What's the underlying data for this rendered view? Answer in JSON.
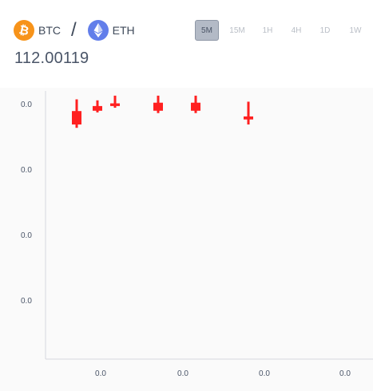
{
  "header": {
    "base_token": {
      "symbol": "BTC",
      "icon": "bitcoin-icon",
      "color": "#f7931a"
    },
    "separator": "/",
    "quote_token": {
      "symbol": "ETH",
      "icon": "ethereum-icon",
      "color": "#627eea"
    },
    "intervals": [
      {
        "label": "5M",
        "active": true
      },
      {
        "label": "15M",
        "active": false
      },
      {
        "label": "1H",
        "active": false
      },
      {
        "label": "4H",
        "active": false
      },
      {
        "label": "1D",
        "active": false
      },
      {
        "label": "1W",
        "active": false
      }
    ]
  },
  "price": "112.00119",
  "chart_data": {
    "type": "candlestick",
    "title": "",
    "y_tick_labels": [
      "0.0",
      "0.0",
      "0.0",
      "0.0"
    ],
    "x_tick_labels": [
      "0.0",
      "0.0",
      "0.0"
    ],
    "x_tick_labels_right": "0.0",
    "candle_color": "#ff2020",
    "candles": [
      {
        "o": 0.74,
        "c": 0.7,
        "h": 0.775,
        "l": 0.69
      },
      {
        "o": 0.755,
        "c": 0.741,
        "h": 0.772,
        "l": 0.736
      },
      {
        "o": 0.763,
        "c": 0.755,
        "h": 0.786,
        "l": 0.75
      },
      {
        "o": 0.765,
        "c": 0.741,
        "h": 0.786,
        "l": 0.734
      },
      {
        "o": 0.765,
        "c": 0.741,
        "h": 0.786,
        "l": 0.734
      },
      {
        "o": 0.724,
        "c": 0.715,
        "h": 0.768,
        "l": 0.7
      }
    ]
  }
}
